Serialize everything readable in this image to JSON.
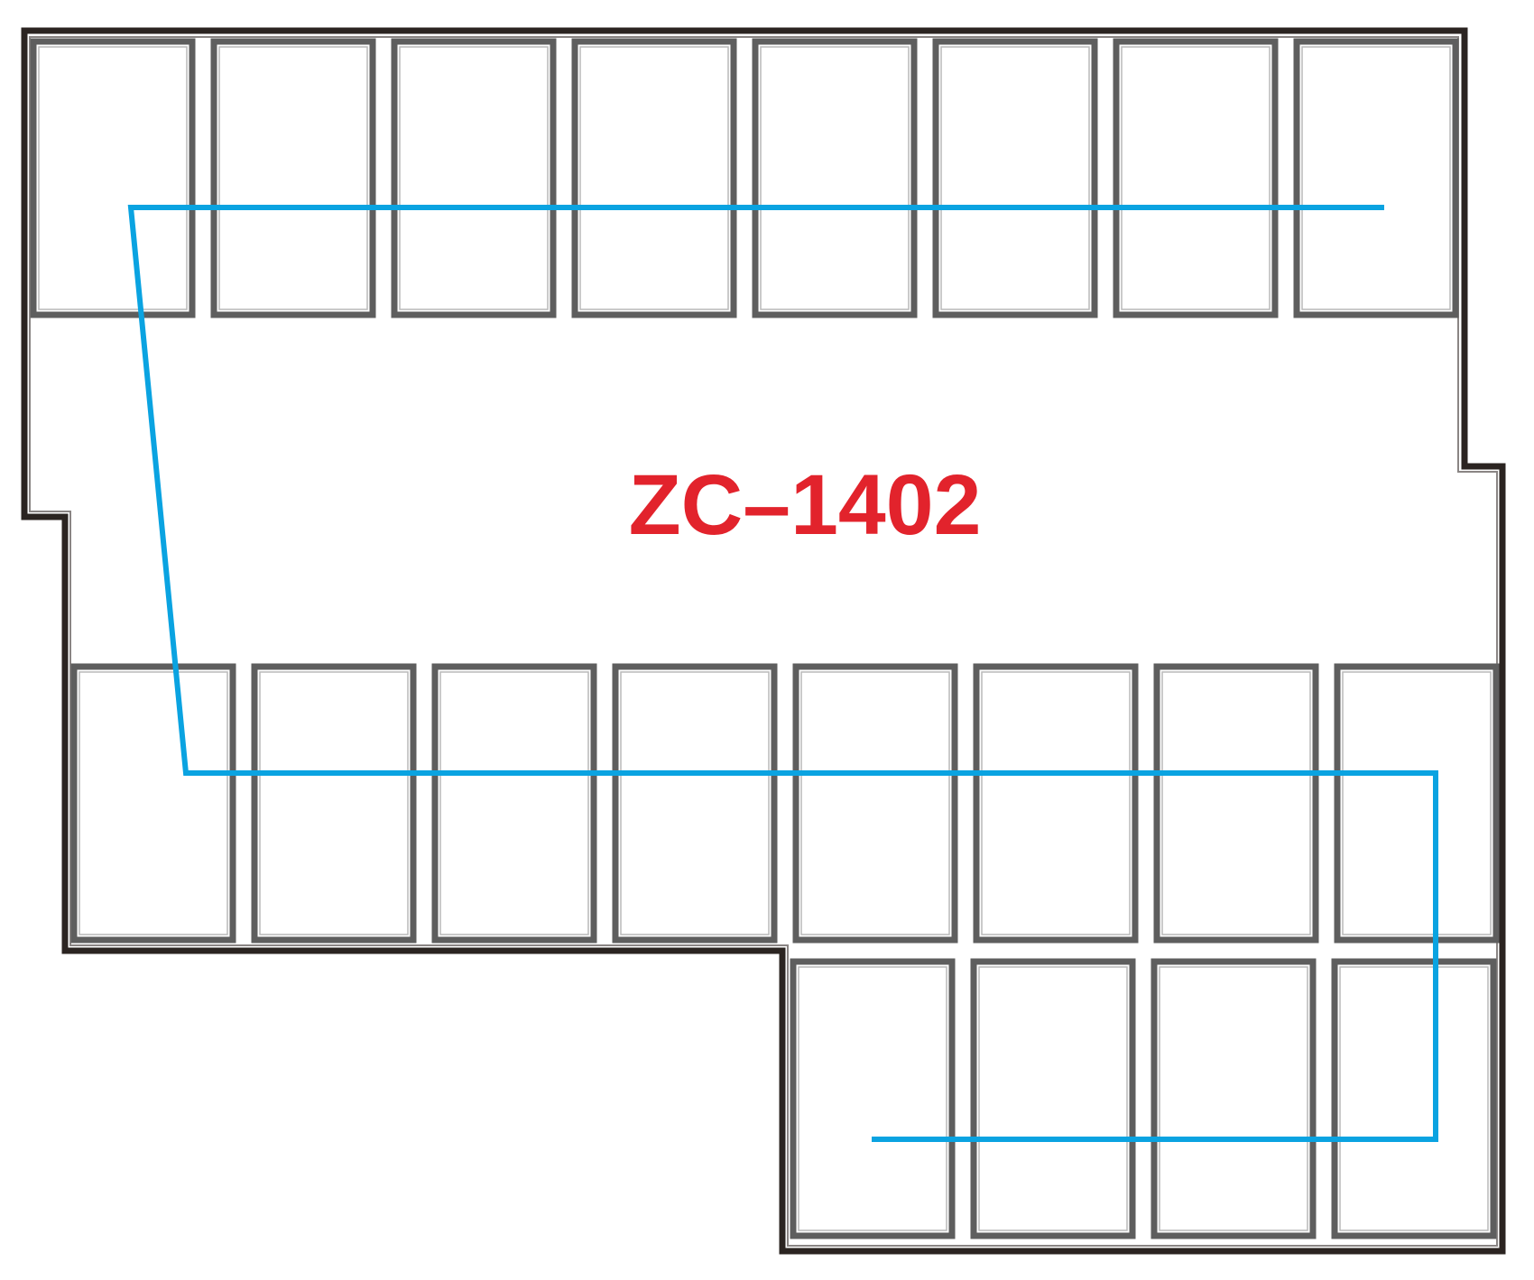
{
  "diagram": {
    "model_label": "ZC–1402",
    "label_color": "#e2232c",
    "string_color": "#0aa3e1",
    "outline_color": "#2b2421",
    "panel_color": "#5e5e5e",
    "panels": {
      "top_row": 8,
      "middle_row": 8,
      "bottom_row": 4
    }
  }
}
